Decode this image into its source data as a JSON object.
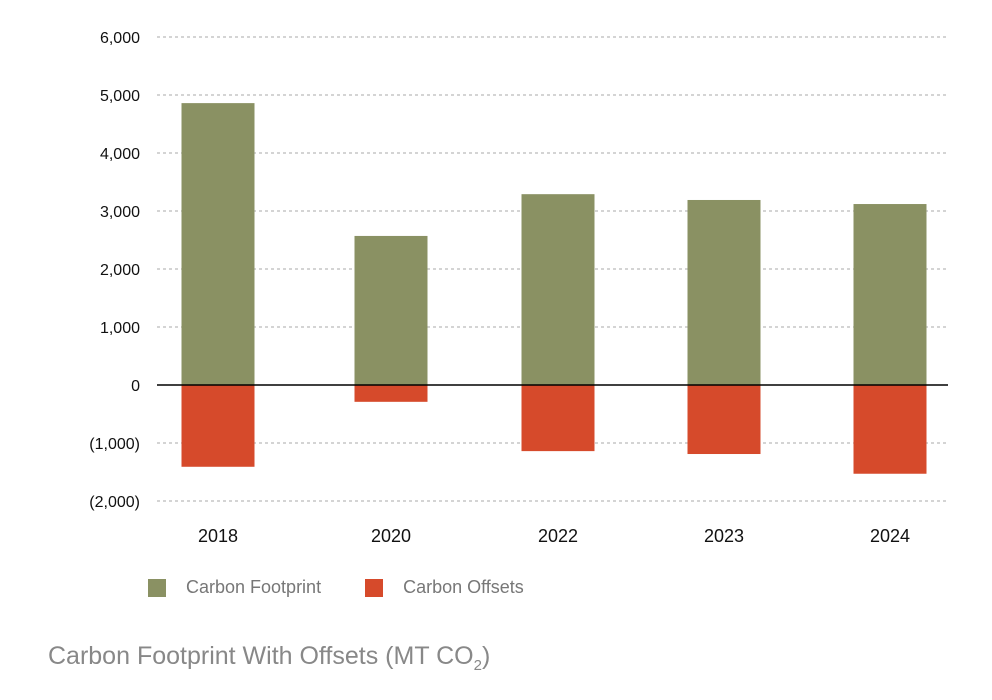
{
  "chart_data": {
    "type": "bar",
    "stacked": true,
    "title": "Carbon Footprint With Offsets (MT CO",
    "title_subscript": "2",
    "title_suffix": ")",
    "categories": [
      "2018",
      "2020",
      "2022",
      "2023",
      "2024"
    ],
    "series": [
      {
        "name": "Carbon Footprint",
        "color": "#8a9163",
        "values": [
          4860,
          2570,
          3290,
          3190,
          3120
        ]
      },
      {
        "name": "Carbon Offsets",
        "color": "#d64a2b",
        "values": [
          -1410,
          -290,
          -1140,
          -1190,
          -1530
        ]
      }
    ],
    "ylim": [
      -2000,
      6000
    ],
    "yticks": [
      6000,
      5000,
      4000,
      3000,
      2000,
      1000,
      0,
      -1000,
      -2000
    ],
    "ytick_labels": [
      "6,000",
      "5,000",
      "4,000",
      "3,000",
      "2,000",
      "1,000",
      "0",
      "(1,000)",
      "(2,000)"
    ],
    "grid": true,
    "legend_position": "bottom-left"
  }
}
